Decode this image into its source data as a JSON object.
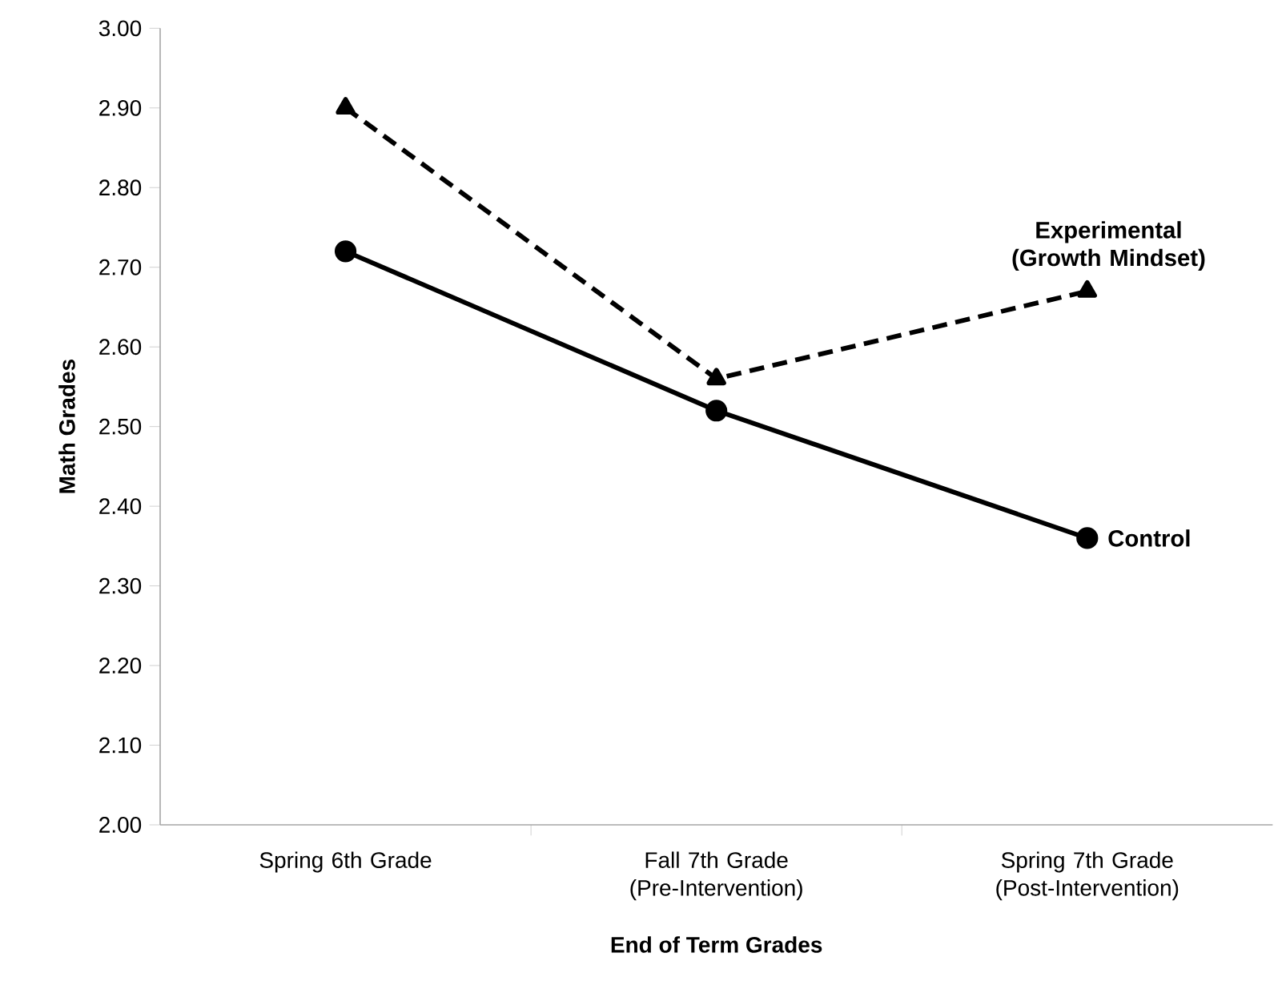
{
  "chart_data": {
    "type": "line",
    "xlabel": "End of Term Grades",
    "ylabel": "Math Grades",
    "categories": [
      "Spring 6th Grade",
      "Fall 7th Grade (Pre-Intervention)",
      "Spring 7th Grade (Post-Intervention)"
    ],
    "series": [
      {
        "name": "Experimental (Growth Mindset)",
        "color": "#000000",
        "values": [
          2.9,
          2.56,
          2.67
        ],
        "marker": "triangle",
        "line_style": "dashed"
      },
      {
        "name": "Control",
        "color": "#000000",
        "values": [
          2.72,
          2.52,
          2.36
        ],
        "marker": "circle",
        "line_style": "solid"
      }
    ],
    "ylim": [
      2.0,
      3.0
    ],
    "yticks": [
      {
        "value": 2.0,
        "label": "2.00"
      },
      {
        "value": 2.1,
        "label": "2.10"
      },
      {
        "value": 2.2,
        "label": "2.20"
      },
      {
        "value": 2.3,
        "label": "2.30"
      },
      {
        "value": 2.4,
        "label": "2.40"
      },
      {
        "value": 2.5,
        "label": "2.50"
      },
      {
        "value": 2.6,
        "label": "2.60"
      },
      {
        "value": 2.7,
        "label": "2.70"
      },
      {
        "value": 2.8,
        "label": "2.80"
      },
      {
        "value": 2.9,
        "label": "2.90"
      },
      {
        "value": 3.0,
        "label": "3.00"
      }
    ],
    "grid": false,
    "legend": false
  }
}
